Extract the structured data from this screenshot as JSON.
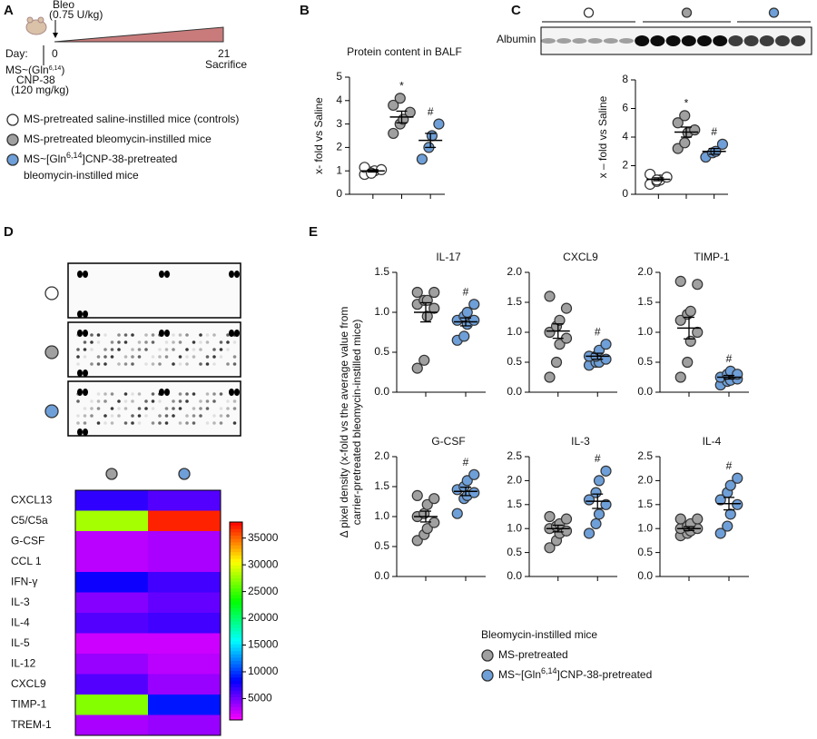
{
  "panel_labels": [
    "A",
    "B",
    "C",
    "D",
    "E"
  ],
  "timeline": {
    "bleo": "Bleo",
    "bleo_dose": "(0.75 U/kg)",
    "day_label": "Day:",
    "start": 0,
    "end": 21,
    "end_label": "Sacrifice",
    "treatment_pre": "MS~(Gln",
    "treatment_sup": "6,14",
    "treatment_post": ")",
    "treatment_lines": [
      "CNP-38",
      "(120 mg/kg)"
    ]
  },
  "legend_a": [
    {
      "label": "MS-pretreated saline-instilled mice (controls)",
      "color": "#ffffff"
    },
    {
      "label": "MS-pretreated bleomycin-instilled mice",
      "color": "#a0a0a0"
    },
    {
      "pre": "MS~[Gln",
      "sup": "6,14",
      "post": "]CNP-38-pretreated",
      "line2": "bleomycin-instilled mice",
      "color": "#6e9fd8"
    }
  ],
  "blot_c": {
    "label": "Albumin",
    "group_colors": [
      "#ffffff",
      "#a0a0a0",
      "#6e9fd8"
    ]
  },
  "array_d": {
    "group_colors": [
      "#ffffff",
      "#a0a0a0",
      "#6e9fd8"
    ]
  },
  "panel_e": {
    "ylabel": [
      "Δ pixel density (x-fold vs the average value from",
      "carrier-pretreated bleomycin-instilled mice)"
    ],
    "legend_title": "Bleomycin-instilled mice",
    "legend": [
      {
        "label": "MS-pretreated",
        "color": "#a0a0a0"
      },
      {
        "pre": "MS~[Gln",
        "sup": "6,14",
        "post": "]CNP-38-pretreated",
        "color": "#6e9fd8"
      }
    ]
  },
  "chart_data": [
    {
      "type": "dotplot",
      "title": "Protein content in BALF",
      "ylabel": "x- fold vs Saline",
      "ylim": [
        0,
        5
      ],
      "yticks": [
        0,
        1,
        2,
        3,
        4,
        5
      ],
      "series": [
        {
          "color": "#ffffff",
          "values": [
            0.85,
            0.95,
            1.0,
            1.05,
            1.15,
            0.9
          ],
          "mean": 1.0,
          "sem": 0.05
        },
        {
          "color": "#a0a0a0",
          "values": [
            2.6,
            3.0,
            3.2,
            3.5,
            3.8,
            4.1
          ],
          "mean": 3.3,
          "sem": 0.25,
          "annotation": "*"
        },
        {
          "color": "#6e9fd8",
          "values": [
            1.5,
            2.0,
            2.5,
            3.0
          ],
          "mean": 2.3,
          "sem": 0.3,
          "annotation": "#"
        }
      ]
    },
    {
      "type": "dotplot",
      "ylabel": "x – fold vs Saline",
      "ylim": [
        0,
        8
      ],
      "yticks": [
        0,
        2,
        4,
        6,
        8
      ],
      "series": [
        {
          "color": "#ffffff",
          "values": [
            0.7,
            0.9,
            1.0,
            1.2,
            1.4,
            1.0
          ],
          "mean": 1.05,
          "sem": 0.1
        },
        {
          "color": "#a0a0a0",
          "values": [
            3.2,
            3.6,
            4.3,
            4.5,
            5.0,
            5.5
          ],
          "mean": 4.35,
          "sem": 0.35,
          "annotation": "*"
        },
        {
          "color": "#6e9fd8",
          "values": [
            2.6,
            2.9,
            3.0,
            3.5
          ],
          "mean": 3.0,
          "sem": 0.2,
          "annotation": "#"
        }
      ]
    },
    {
      "type": "dotplot",
      "title": "IL-17",
      "ylim": [
        0,
        1.5
      ],
      "yticks": [
        {
          "value": 0,
          "label": "0.0"
        },
        0.5,
        {
          "value": 1,
          "label": "1.0"
        },
        1.5
      ],
      "series": [
        {
          "color": "#a0a0a0",
          "values": [
            0.3,
            0.4,
            0.95,
            1.05,
            1.1,
            1.15,
            1.15,
            1.25,
            1.25
          ],
          "mean": 1.0,
          "sem": 0.12
        },
        {
          "color": "#6e9fd8",
          "values": [
            0.65,
            0.7,
            0.85,
            0.9,
            0.9,
            0.95,
            1.0,
            1.1
          ],
          "mean": 0.88,
          "sem": 0.05,
          "annotation": "#"
        }
      ]
    },
    {
      "type": "dotplot",
      "title": "CXCL9",
      "ylim": [
        0,
        2
      ],
      "yticks": [
        {
          "value": 0,
          "label": "0.0"
        },
        0.5,
        {
          "value": 1,
          "label": "1.0"
        },
        1.5,
        {
          "value": 2,
          "label": "2.0"
        }
      ],
      "series": [
        {
          "color": "#a0a0a0",
          "values": [
            0.25,
            0.5,
            0.8,
            0.9,
            1.0,
            1.1,
            1.2,
            1.4,
            1.6
          ],
          "mean": 1.02,
          "sem": 0.12
        },
        {
          "color": "#6e9fd8",
          "values": [
            0.45,
            0.5,
            0.5,
            0.55,
            0.6,
            0.6,
            0.7,
            0.8
          ],
          "mean": 0.6,
          "sem": 0.05,
          "annotation": "#"
        }
      ]
    },
    {
      "type": "dotplot",
      "title": "TIMP-1",
      "ylim": [
        0,
        2
      ],
      "yticks": [
        {
          "value": 0,
          "label": "0.0"
        },
        0.5,
        {
          "value": 1,
          "label": "1.0"
        },
        1.5,
        {
          "value": 2,
          "label": "2.0"
        }
      ],
      "series": [
        {
          "color": "#a0a0a0",
          "values": [
            0.25,
            0.5,
            0.85,
            1.0,
            1.2,
            1.3,
            1.35,
            1.8,
            1.85
          ],
          "mean": 1.07,
          "sem": 0.18
        },
        {
          "color": "#6e9fd8",
          "values": [
            0.12,
            0.18,
            0.2,
            0.22,
            0.25,
            0.3,
            0.35,
            0.3
          ],
          "mean": 0.25,
          "sem": 0.03,
          "annotation": "#"
        }
      ]
    },
    {
      "type": "dotplot",
      "title": "G-CSF",
      "ylim": [
        0,
        2
      ],
      "yticks": [
        {
          "value": 0,
          "label": "0.0"
        },
        0.5,
        {
          "value": 1,
          "label": "1.0"
        },
        1.5,
        {
          "value": 2,
          "label": "2.0"
        }
      ],
      "series": [
        {
          "color": "#a0a0a0",
          "values": [
            0.6,
            0.7,
            0.8,
            0.9,
            1.0,
            1.05,
            1.2,
            1.3,
            1.35
          ],
          "mean": 1.0,
          "sem": 0.09
        },
        {
          "color": "#6e9fd8",
          "values": [
            1.05,
            1.3,
            1.35,
            1.4,
            1.45,
            1.5,
            1.6,
            1.7
          ],
          "mean": 1.42,
          "sem": 0.07,
          "annotation": "#"
        }
      ]
    },
    {
      "type": "dotplot",
      "title": "IL-3",
      "ylim": [
        0,
        2.5
      ],
      "yticks": [
        {
          "value": 0,
          "label": "0.0"
        },
        0.5,
        {
          "value": 1,
          "label": "1.0"
        },
        1.5,
        {
          "value": 2,
          "label": "2.0"
        },
        2.5
      ],
      "series": [
        {
          "color": "#a0a0a0",
          "values": [
            0.6,
            0.75,
            0.9,
            0.95,
            1.0,
            1.05,
            1.1,
            1.2,
            1.25
          ],
          "mean": 1.0,
          "sem": 0.07
        },
        {
          "color": "#6e9fd8",
          "values": [
            0.9,
            1.1,
            1.3,
            1.5,
            1.6,
            1.75,
            2.0,
            2.2
          ],
          "mean": 1.57,
          "sem": 0.15,
          "annotation": "#"
        }
      ]
    },
    {
      "type": "dotplot",
      "title": "IL-4",
      "ylim": [
        0,
        2.5
      ],
      "yticks": [
        {
          "value": 0,
          "label": "0.0"
        },
        0.5,
        {
          "value": 1,
          "label": "1.0"
        },
        1.5,
        {
          "value": 2,
          "label": "2.0"
        },
        2.5
      ],
      "series": [
        {
          "color": "#a0a0a0",
          "values": [
            0.85,
            0.9,
            0.95,
            1.0,
            1.0,
            1.05,
            1.1,
            1.2,
            1.2
          ],
          "mean": 1.0,
          "sem": 0.04
        },
        {
          "color": "#6e9fd8",
          "values": [
            0.9,
            1.05,
            1.3,
            1.5,
            1.6,
            1.75,
            1.9,
            2.05
          ],
          "mean": 1.52,
          "sem": 0.13,
          "annotation": "#"
        }
      ]
    },
    {
      "type": "heatmap",
      "categories": [
        "CXCL13",
        "C5/C5a",
        "G-CSF",
        "CCL 1",
        "IFN-γ",
        "IL-3",
        "IL-4",
        "IL-5",
        "IL-12",
        "CXCL9",
        "TIMP-1",
        "TREM-1"
      ],
      "column_colors": [
        "#a0a0a0",
        "#6e9fd8"
      ],
      "values": [
        [
          7000,
          6000
        ],
        [
          28000,
          37000
        ],
        [
          3000,
          3500
        ],
        [
          3000,
          3500
        ],
        [
          8000,
          6500
        ],
        [
          4500,
          5500
        ],
        [
          6000,
          6500
        ],
        [
          2500,
          2500
        ],
        [
          4000,
          3000
        ],
        [
          6000,
          4000
        ],
        [
          27000,
          9000
        ],
        [
          3500,
          4000
        ]
      ],
      "colormap": "rainbow",
      "clim": [
        1000,
        38000
      ],
      "cticks": [
        5000,
        10000,
        15000,
        20000,
        25000,
        30000,
        35000
      ]
    }
  ]
}
